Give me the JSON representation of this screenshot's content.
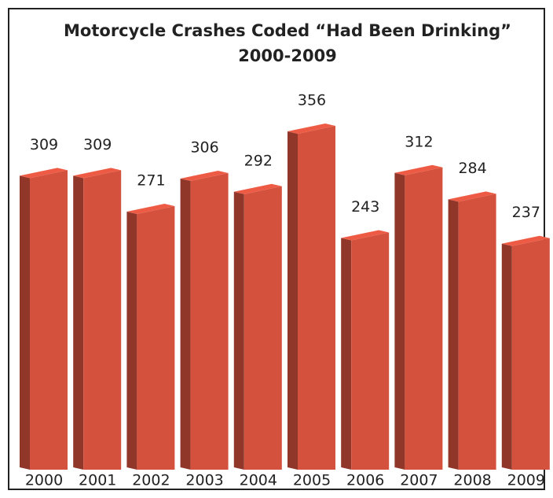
{
  "chart_data": {
    "type": "bar3d",
    "title": "Motorcycle Crashes Coded “Had Been Drinking”",
    "subtitle": "2000-2009",
    "categories": [
      "2000",
      "2001",
      "2002",
      "2003",
      "2004",
      "2005",
      "2006",
      "2007",
      "2008",
      "2009"
    ],
    "values": [
      309,
      309,
      271,
      306,
      292,
      356,
      243,
      312,
      284,
      237
    ],
    "color": "#d4513e"
  }
}
